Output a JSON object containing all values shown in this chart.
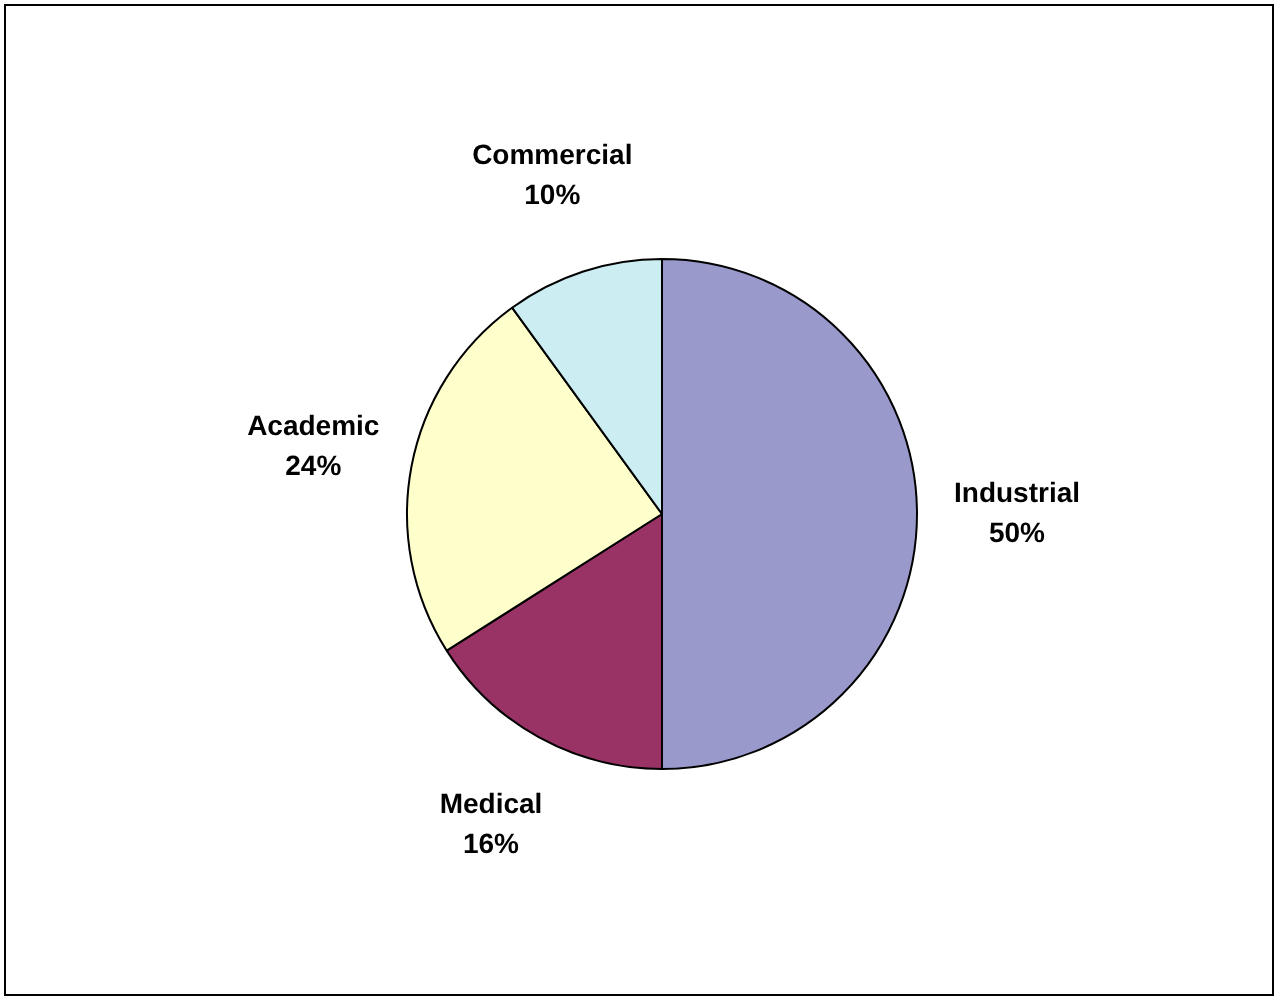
{
  "chart_data": {
    "type": "pie",
    "categories": [
      "Industrial",
      "Medical",
      "Academic",
      "Commercial"
    ],
    "values": [
      50,
      16,
      24,
      10
    ],
    "colors": [
      "#9999cc",
      "#993366",
      "#ffffcc",
      "#cceef2"
    ],
    "value_labels": [
      "50%",
      "16%",
      "24%",
      "10%"
    ],
    "legend": false
  }
}
